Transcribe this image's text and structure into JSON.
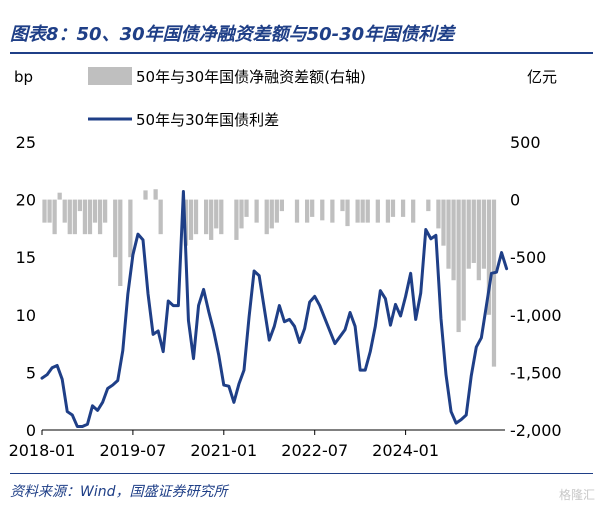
{
  "header": {
    "title": "图表8：50、30年国债净融资差额与50-30年国债利差"
  },
  "footer": {
    "source": "资料来源：Wind，国盛证券研究所",
    "watermark": "格隆汇"
  },
  "colors": {
    "line": "#1f3f87",
    "bar": "#bfbfbf",
    "accent": "#1f3f87"
  },
  "chart_data": {
    "type": "bar+line",
    "left_unit": "bp",
    "right_unit": "亿元",
    "legend": {
      "bar_label": "50年与30年国债净融资差额(右轴)",
      "line_label": "50年与30年国债利差"
    },
    "left_axis": {
      "ylim": [
        0,
        25
      ],
      "ticks": [
        0,
        5,
        10,
        15,
        20,
        25
      ],
      "tick_labels": [
        "0",
        "5",
        "10",
        "15",
        "20",
        "25"
      ]
    },
    "right_axis": {
      "ylim": [
        -2000,
        500
      ],
      "ticks": [
        -2000,
        -1500,
        -1000,
        -500,
        0,
        500
      ],
      "tick_labels": [
        "-2,000",
        "-1,500",
        "-1,000",
        "-500",
        "0",
        "500"
      ]
    },
    "x_ticks": [
      {
        "month_index": 0,
        "label": "2018-01"
      },
      {
        "month_index": 18,
        "label": "2019-07"
      },
      {
        "month_index": 36,
        "label": "2021-01"
      },
      {
        "month_index": 54,
        "label": "2022-07"
      },
      {
        "month_index": 72,
        "label": "2024-01"
      }
    ],
    "x_range_months": [
      0,
      90
    ],
    "bars": {
      "name": "50年与30年国债净融资差额(右轴)",
      "unit": "亿元",
      "values": [
        -200,
        -200,
        -300,
        60,
        -200,
        -300,
        -300,
        -100,
        -300,
        -300,
        -200,
        -300,
        -200,
        0,
        -500,
        -750,
        0,
        -500,
        0,
        0,
        80,
        0,
        90,
        -300,
        0,
        0,
        0,
        0,
        -400,
        -350,
        -300,
        0,
        -300,
        -350,
        -250,
        -300,
        0,
        0,
        -350,
        -250,
        -150,
        0,
        -200,
        0,
        -300,
        -250,
        -200,
        -100,
        0,
        0,
        -200,
        0,
        -200,
        -150,
        0,
        -180,
        0,
        -200,
        0,
        -100,
        -230,
        0,
        -200,
        -200,
        -200,
        0,
        -200,
        0,
        -200,
        -150,
        0,
        -150,
        0,
        -200,
        0,
        0,
        -100,
        0,
        -250,
        -400,
        -600,
        -700,
        -1150,
        -1050,
        -600,
        -550,
        -700,
        -600,
        -1000,
        -1450
      ]
    },
    "series": [
      {
        "name": "50年与30年国债利差",
        "unit": "bp",
        "points": [
          [
            0,
            4.5
          ],
          [
            1,
            4.8
          ],
          [
            2,
            5.4
          ],
          [
            3,
            5.6
          ],
          [
            4,
            4.4
          ],
          [
            5,
            1.6
          ],
          [
            6,
            1.3
          ],
          [
            7,
            0.3
          ],
          [
            8,
            0.3
          ],
          [
            9,
            0.5
          ],
          [
            10,
            2.1
          ],
          [
            11,
            1.7
          ],
          [
            12,
            2.4
          ],
          [
            13,
            3.6
          ],
          [
            14,
            3.9
          ],
          [
            15,
            4.3
          ],
          [
            16,
            6.9
          ],
          [
            17,
            11.8
          ],
          [
            18,
            15.2
          ],
          [
            19,
            17.0
          ],
          [
            20,
            16.5
          ],
          [
            21,
            11.8
          ],
          [
            22,
            8.3
          ],
          [
            23,
            8.6
          ],
          [
            24,
            6.8
          ],
          [
            25,
            11.2
          ],
          [
            26,
            10.8
          ],
          [
            27,
            10.8
          ],
          [
            28,
            20.7
          ],
          [
            29,
            9.5
          ],
          [
            30,
            6.2
          ],
          [
            31,
            10.8
          ],
          [
            32,
            12.2
          ],
          [
            33,
            10.3
          ],
          [
            34,
            8.6
          ],
          [
            35,
            6.5
          ],
          [
            36,
            3.9
          ],
          [
            37,
            3.8
          ],
          [
            38,
            2.4
          ],
          [
            39,
            4.0
          ],
          [
            40,
            5.2
          ],
          [
            41,
            9.8
          ],
          [
            42,
            13.8
          ],
          [
            43,
            13.4
          ],
          [
            44,
            10.6
          ],
          [
            45,
            7.8
          ],
          [
            46,
            9.0
          ],
          [
            47,
            10.8
          ],
          [
            48,
            9.4
          ],
          [
            49,
            9.6
          ],
          [
            50,
            9.0
          ],
          [
            51,
            7.6
          ],
          [
            52,
            8.8
          ],
          [
            53,
            11.1
          ],
          [
            54,
            11.6
          ],
          [
            55,
            10.8
          ],
          [
            56,
            9.7
          ],
          [
            57,
            8.6
          ],
          [
            58,
            7.5
          ],
          [
            59,
            8.1
          ],
          [
            60,
            8.7
          ],
          [
            61,
            10.2
          ],
          [
            62,
            9.0
          ],
          [
            63,
            5.2
          ],
          [
            64,
            5.2
          ],
          [
            65,
            6.8
          ],
          [
            66,
            9.0
          ],
          [
            67,
            12.1
          ],
          [
            68,
            11.4
          ],
          [
            69,
            9.1
          ],
          [
            70,
            10.9
          ],
          [
            71,
            9.9
          ],
          [
            72,
            11.6
          ],
          [
            73,
            13.6
          ],
          [
            74,
            9.6
          ],
          [
            75,
            11.9
          ],
          [
            76,
            17.4
          ],
          [
            77,
            16.6
          ],
          [
            78,
            16.9
          ],
          [
            79,
            9.7
          ],
          [
            80,
            4.8
          ],
          [
            81,
            1.6
          ],
          [
            82,
            0.6
          ],
          [
            83,
            0.9
          ],
          [
            84,
            1.3
          ],
          [
            85,
            4.7
          ],
          [
            86,
            7.2
          ],
          [
            87,
            8.0
          ],
          [
            88,
            10.8
          ],
          [
            89,
            13.6
          ],
          [
            90,
            13.7
          ],
          [
            91,
            15.4
          ],
          [
            92,
            14.0
          ]
        ]
      }
    ]
  }
}
